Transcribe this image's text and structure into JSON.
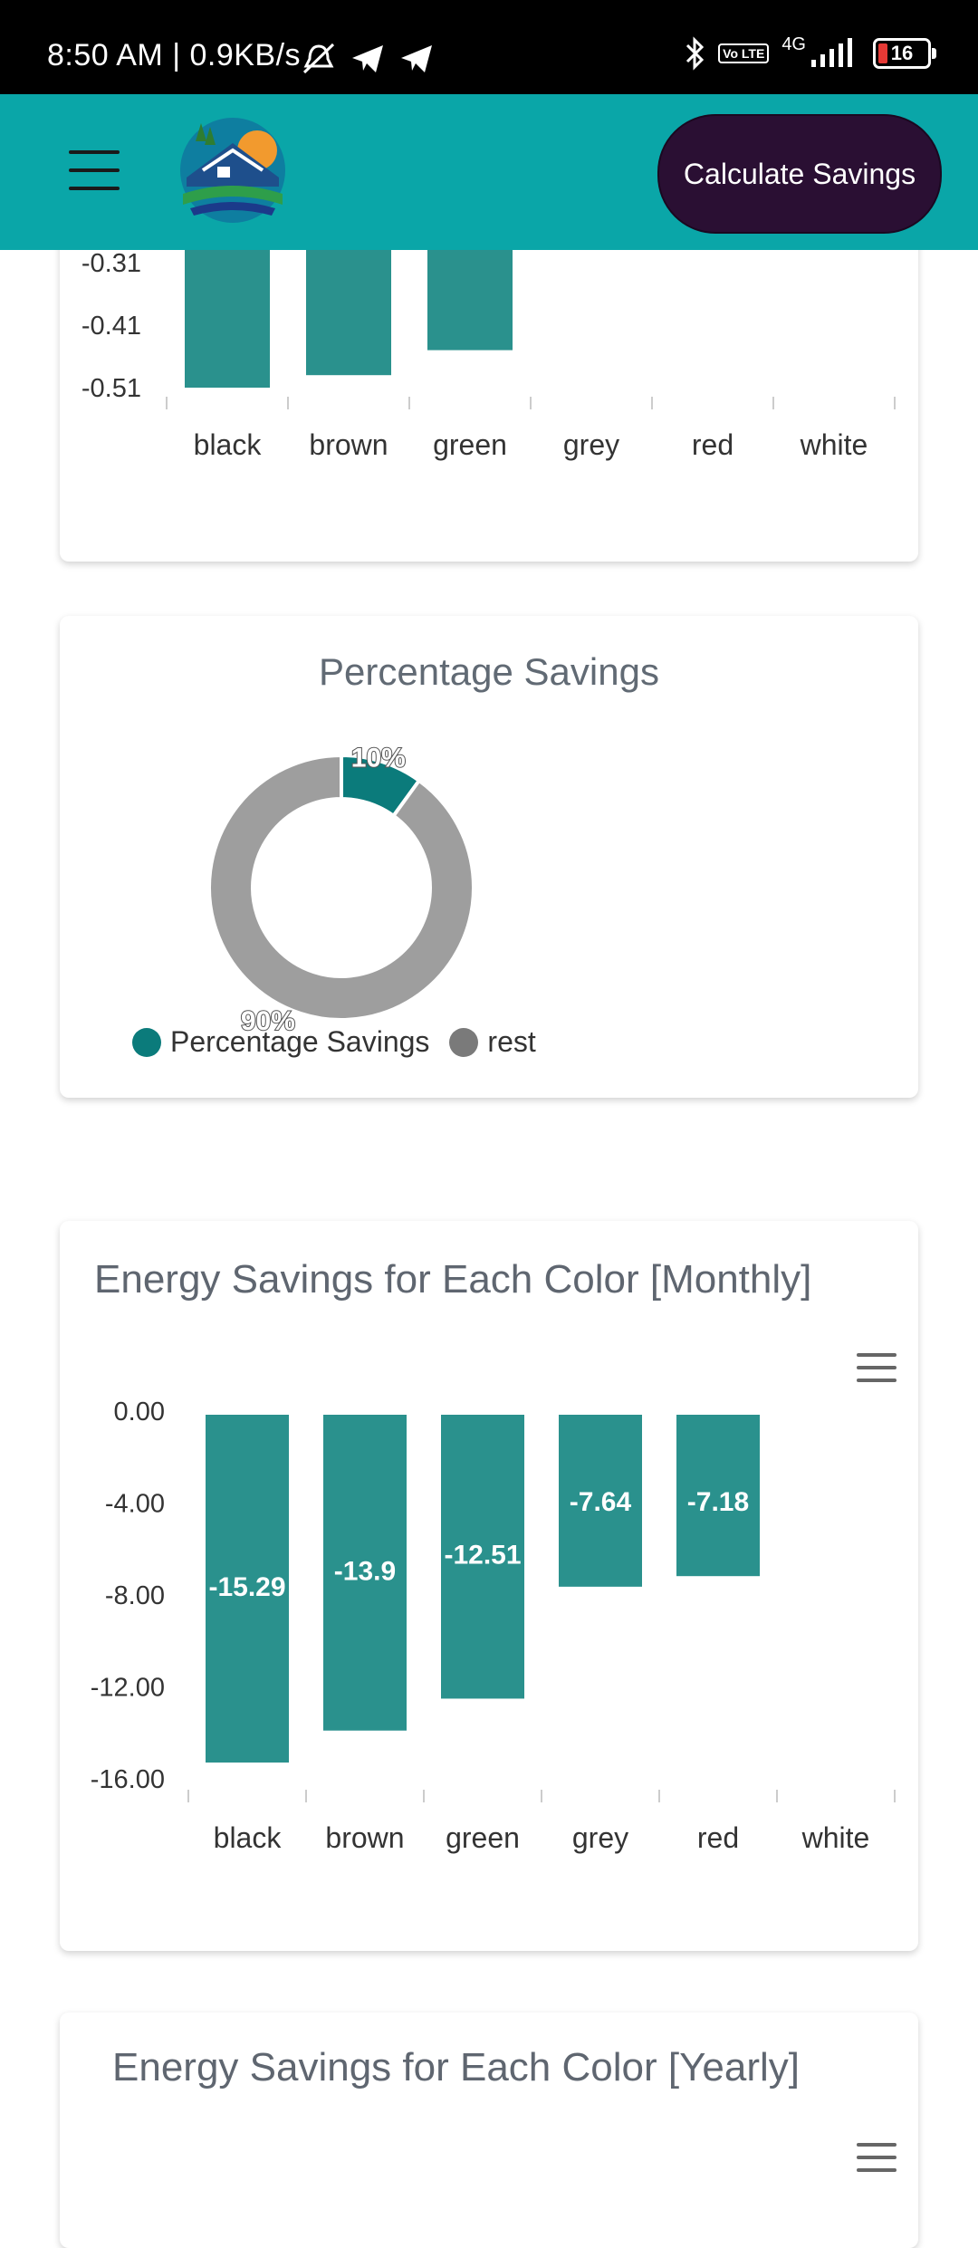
{
  "status_bar": {
    "time": "8:50 AM | 0.9KB/s",
    "network": "4G",
    "lte": "Vo LTE",
    "battery": "16"
  },
  "header": {
    "calculate_button": "Calculate Savings"
  },
  "colors": {
    "teal_bar": "#2a918d",
    "pie_primary": "#0b7b7b",
    "pie_rest": "#9e9e9e",
    "appbar": "#0aa6a8",
    "button": "#2a0f33"
  },
  "chart_data": [
    {
      "type": "bar",
      "title": "",
      "categories": [
        "black",
        "brown",
        "green",
        "grey",
        "red",
        "white"
      ],
      "y_ticks": [
        "-0.31",
        "-0.41",
        "-0.51"
      ],
      "values": [
        -0.51,
        -0.49,
        -0.45,
        null,
        null,
        null
      ],
      "data_labels": [
        "-0.51",
        "",
        "",
        "",
        "",
        ""
      ],
      "partially_visible": true
    },
    {
      "type": "pie",
      "title": "Percentage Savings",
      "labels": [
        "Percentage Savings",
        "rest"
      ],
      "values": [
        10,
        90
      ],
      "data_labels": [
        "10%",
        "90%"
      ],
      "legend": "bottom-left"
    },
    {
      "type": "bar",
      "title": "Energy Savings for Each Color [Monthly]",
      "categories": [
        "black",
        "brown",
        "green",
        "grey",
        "red",
        "white"
      ],
      "values": [
        -15.29,
        -13.9,
        -12.51,
        -7.64,
        -7.18,
        null
      ],
      "data_labels": [
        "-15.29",
        "-13.9",
        "-12.51",
        "-7.64",
        "-7.18",
        ""
      ],
      "y_ticks": [
        "0.00",
        "-4.00",
        "-8.00",
        "-12.00",
        "-16.00"
      ],
      "ylim": [
        -16,
        0
      ]
    },
    {
      "type": "bar",
      "title": "Energy Savings for Each Color [Yearly]"
    }
  ]
}
